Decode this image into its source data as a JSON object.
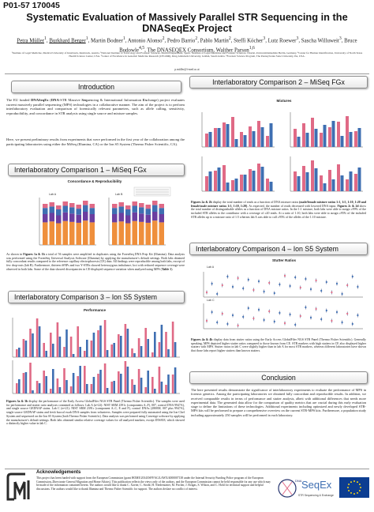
{
  "poster": {
    "id": "P01-57 170045",
    "title": "Systematic Evaluation of Massively Parallel STR Sequencing in the DNASeqEx Project",
    "authors_html": "<span class='u'>Petra Müller</span><sup>1</sup>, <span class='u'>Burkhard Berger</span><sup>1</sup>, Martin Bodner<sup>1</sup>, Antonio Alonso<sup>2</sup>, Pedro Barrio<sup>2</sup>, Pablo Martín<sup>2</sup>, Steffi Köcher<sup>3</sup>, Lutz Roewer<sup>3</sup>, Sascha Willuweit<sup>3</sup>, Bruce Budowle<sup>4,5</sup>, The DNASEQEX Consortium, Walther Parson<sup>1,6</sup>",
    "affiliations": "¹Institute of Legal Medicine, Medical University of Innsbruck, Innsbruck, Austria. ²National Institute of Toxicology and Forensic Sciences, Madrid Department, Spain. ³Institute of Legal Medicine and Forensic Sciences, Charité–Universitätsmedizin Berlin, Germany. ⁴Center for Human Identification, University of North Texas Health Science Center, USA. ⁵Center of Excellence in Genomic Medicine Research (CEGMR), King Abdulaziz University, Jeddah, Saudi Arabia. ⁶Forensic Science Program, The Pennsylvania State University, PA, USA.",
    "email": "p.müller@i-med.ac.at"
  },
  "intro": {
    "heading": "Introduction",
    "paragraph1_html": "The EU funded <b>DNASeqEx</b> (<b>DNA</b>-STR Massive <b>Seq</b>uencing &amp; International Information <b>Ex</b>change) project evaluates current massively parallel sequencing (MPS) technologies in a collaborative manner. The aim of the project is to perform interlaboratory evaluation and comparison of forensically relevant parameters, such as allele calling, sensitivity, reproducibility, and concordance in STR analysis using single source and mixture samples.",
    "paragraph2": "Here, we present preliminary results from experiments that were performed in the first year of the collaboration among the participating laboratories using either the MiSeq (Illumina, CA) or the Ion S5 System (Thermo Fisher Scientific, CA)."
  },
  "ilc1": {
    "heading": "Interlaboratory Comparison 1 – MiSeq FGx",
    "panel_title": "Concordance & Reproducibility",
    "sub_a": "Lab A",
    "sub_b": "Lab B",
    "text_html": "As shown in <b>Figures 1a &amp; 1b</b> a total of 56 samples were amplified in duplicates using the ForenSeq DNA Prep Kit (Illumina). Data analysis was performed using the ForenSeq Universal Analysis Software (Illumina) by applying the manufacturer's default settings. Both labs obtained fully concordant results compared to the reference capillary electrophoresis (CE) data. All findings were reproducible among both labs, except of few drop-outs (lab B). Furthermore, thirteen iSNPs and two Y-STRs showed heterozygous imbalance; loci with reduced sequence coverage were observed in both labs. Some of the data showed discrepancies in CE-displayed sequence variation when analyzed using MPS (<b>Table 1</b>)."
  },
  "ilc3": {
    "heading": "Interlaboratory Comparison 3 – Ion S5 System",
    "panel_title": "Performance",
    "caption_html": "<b>Figures 3a &amp; 3b</b> display the performance of the Early Access GlobalFiler NGS STR Panel (Thermo Fisher Scientific). The samples were used for performance and stutter ratio analyses contained as follows: Lab A (n=22): NIST SRM 2391c (components A–F), 007, control DNA 9947A), and single source GEDNAP stains. Lab C (n=21): NIST SRM 2391c (component A–C, E and F), control DNAs (2800M, 007 plus 9947A), single source GEDNAP stains and fresh buccal swab DNA samples from volunteers. Samples were prepared fully automated using the Ion Chef System and sequenced on the Ion S5 System (both Thermo Fisher Scientific). Data analysis was performed using Converge software by applying the manufacturer's default settings. Both labs obtained similar relative coverage values for all analyzed markers, except D5S818, which showed a distinctly higher value in lab C."
  },
  "ilc2": {
    "heading": "Interlaboratory Comparison 2 – MiSeq FGx",
    "panel_title": "Mixtures",
    "caption_html": "<b>Figures 2a &amp; 2b</b> display the total number of reads as a function of DNA mixture ratios <b>(male/female mixture ratios 1:1, 1:5, 1:10, 1:20 and female/male mixture ratios 1:5, 1:10, 1:20)</b>. As expected, the number of reads decreased with lowered DNA input. <b>Figures 2c &amp; 2d</b> show the total number of distinguishable alleles as a function of DNA mixture ratios. In the 1:1 mixture, both labs were able to assign ≥99% of the included STR alleles to the contributor with a coverage of ≥20 reads. At a ratio of 1:10, both labs were able to assign ≥95% of the included STR alleles up to a mixture ratio of 1:5 whereas lab A was able to call ≥95% of the alleles of the 1:10 mixture."
  },
  "ilc4": {
    "heading": "Interlaboratory Comparison 4 – Ion S5 System",
    "panel_title": "Stutter Ratios",
    "sub_a": "Lab A",
    "sub_c": "Lab C",
    "caption_html": "<b>Figures 4a &amp; 4b</b> display data from stutter ratios using the Early Access GlobalFiler NGS STR Panel (Thermo Fisher Scientific). Generally speaking, MPS depicted higher stutter ratios compared to those known from CE. STR markers with high stutters in CE also displayed higher stutters with MPS. Stutter ratios in lab C were slightly higher than in lab A for most STR markers, whereas different laboratories have shown that those labs report higher stutters than known stutters."
  },
  "conclusion": {
    "heading": "Conclusion",
    "text": "The here presented results demonstrate the significance of interlaboratory experiments to evaluate the performance of MPS in forensic genetics. Among the participating laboratories we obtained fully concordant and reproducible results. In addition, we received comparable results in terms of performance and stutter analysis, albeit with additional differences that needs more experimental data. The generated data allow for the comparison of quality metrics that are crucial during this early evaluation stage to define the limitations of these technologies. Additional experiments including optimized and newly developed STR-MPS kits will be performed to prepare a comprehensive overview on the current STR-MPS kits. Furthermore, a population study including approximately 250 samples will be performed in each laboratory."
  },
  "ack": {
    "title": "Acknowledgements",
    "text": "This project has been funded with support from the European Commission (grant HOME/2014/ISFP/AG/LAWX/4000007138 under the Internal Security Funding Police program of the European Commission–Directorate General Migration and Home Affairs). This publication reflects the views only of the authors, and the European Commission cannot be held responsible for any use which may be made of the information contained herein. The authors would like to thank C. Xavier, C. Strobl, H. Niederstätter, M. Pircher, J. Rolgas, S. Wilson, and C. Hohl for technical support and helpful discussions. The authors would like to thank Illumina and Thermo Fisher Scientific for support. The authors declare no conflict of interest."
  },
  "logos": {
    "gmi": "GMI",
    "dnaseqex_left": "DNA",
    "dnaseqex_main": "SeqEx",
    "dnaseqex_sub": "STR Sequencing & Exchange",
    "eu_flag": "eu-flag"
  },
  "colors": {
    "pink": "#e06a86",
    "blue": "#3f6fb2",
    "orange": "#ef8f3c",
    "purple": "#6b3ea0",
    "navy": "#27356f",
    "eu_blue": "#0c3d91",
    "eu_star": "#f6d316"
  }
}
